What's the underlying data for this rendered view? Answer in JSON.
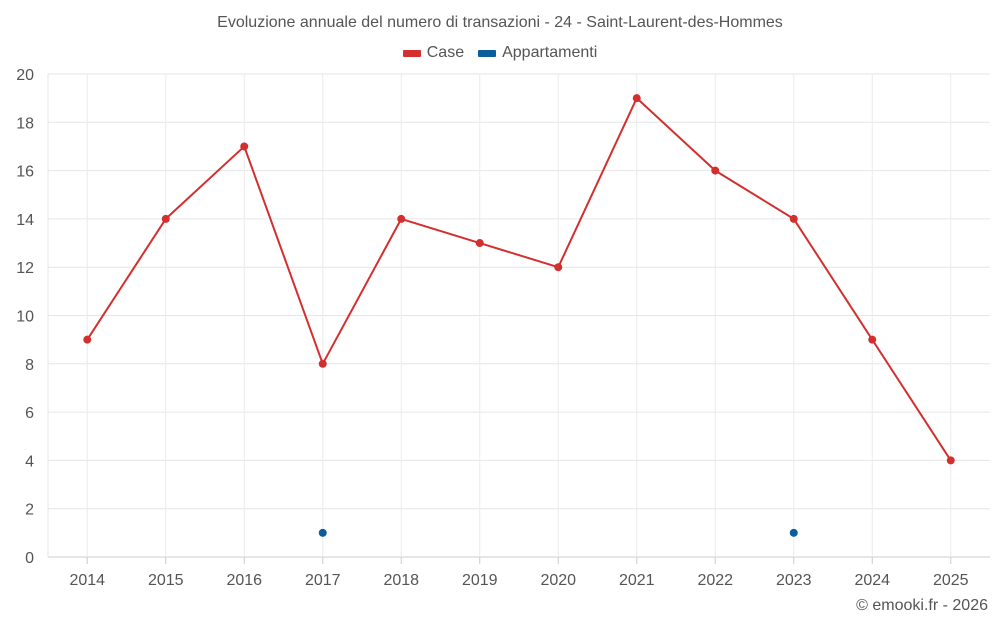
{
  "chart_data": {
    "type": "line",
    "title": "Evoluzione annuale del numero di transazioni - 24 - Saint-Laurent-des-Hommes",
    "categories": [
      "2014",
      "2015",
      "2016",
      "2017",
      "2018",
      "2019",
      "2020",
      "2021",
      "2022",
      "2023",
      "2024",
      "2025"
    ],
    "series": [
      {
        "name": "Case",
        "color": "#d32f2f",
        "values": [
          9,
          14,
          17,
          8,
          14,
          13,
          12,
          19,
          16,
          14,
          9,
          4
        ]
      },
      {
        "name": "Appartamenti",
        "color": "#0b5e9c",
        "values": [
          null,
          null,
          null,
          1,
          null,
          null,
          null,
          null,
          null,
          1,
          null,
          null
        ]
      }
    ],
    "ylim": [
      0,
      20
    ],
    "yticks": [
      0,
      2,
      4,
      6,
      8,
      10,
      12,
      14,
      16,
      18,
      20
    ],
    "grid": true,
    "legend_position": "top-center",
    "xlabel": "",
    "ylabel": ""
  },
  "footer": "© emooki.fr - 2026"
}
